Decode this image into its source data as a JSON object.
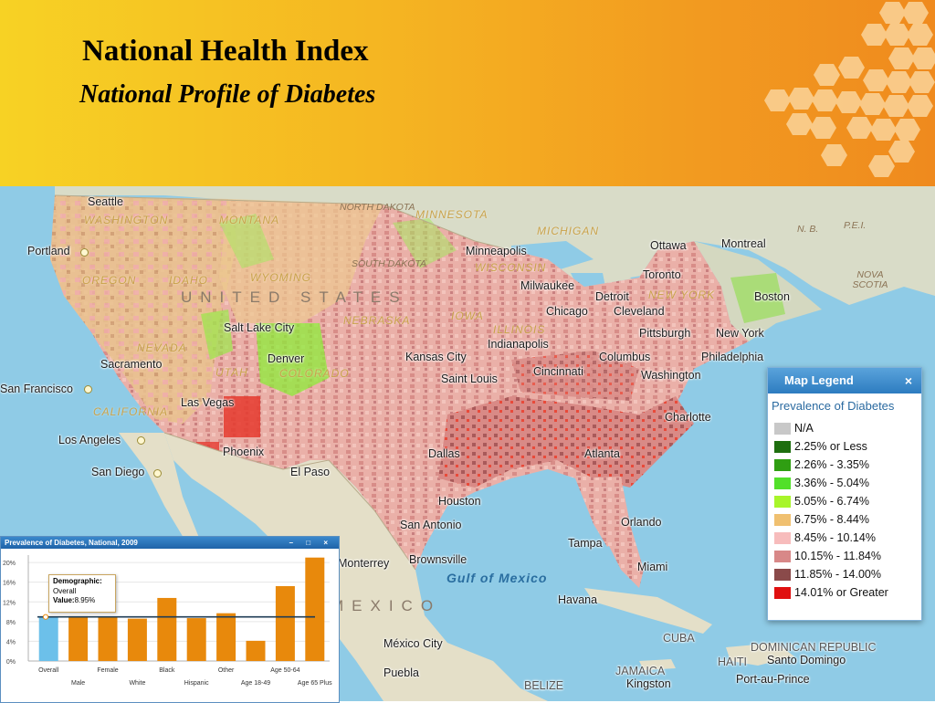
{
  "header": {
    "title": "National Health Index",
    "subtitle": "National Profile of Diabetes"
  },
  "map": {
    "cities": [
      {
        "name": "Seattle"
      },
      {
        "name": "Portland"
      },
      {
        "name": "Salt Lake City"
      },
      {
        "name": "Denver"
      },
      {
        "name": "Sacramento"
      },
      {
        "name": "San Francisco"
      },
      {
        "name": "Las Vegas"
      },
      {
        "name": "Los Angeles"
      },
      {
        "name": "San Diego"
      },
      {
        "name": "Phoenix"
      },
      {
        "name": "El Paso"
      },
      {
        "name": "Dallas"
      },
      {
        "name": "Houston"
      },
      {
        "name": "San Antonio"
      },
      {
        "name": "Brownsville"
      },
      {
        "name": "Monterrey"
      },
      {
        "name": "Minneapolis"
      },
      {
        "name": "Milwaukee"
      },
      {
        "name": "Chicago"
      },
      {
        "name": "Kansas City"
      },
      {
        "name": "Saint Louis"
      },
      {
        "name": "Indianapolis"
      },
      {
        "name": "Cincinnati"
      },
      {
        "name": "Detroit"
      },
      {
        "name": "Cleveland"
      },
      {
        "name": "Pittsburgh"
      },
      {
        "name": "Columbus"
      },
      {
        "name": "Washington"
      },
      {
        "name": "Philadelphia"
      },
      {
        "name": "New York"
      },
      {
        "name": "Boston"
      },
      {
        "name": "Toronto"
      },
      {
        "name": "Ottawa"
      },
      {
        "name": "Montreal"
      },
      {
        "name": "Atlanta"
      },
      {
        "name": "Charlotte"
      },
      {
        "name": "Orlando"
      },
      {
        "name": "Tampa"
      },
      {
        "name": "Miami"
      },
      {
        "name": "Havana"
      },
      {
        "name": "México City"
      },
      {
        "name": "Puebla"
      },
      {
        "name": "Kingston"
      },
      {
        "name": "Port-au-Prince"
      },
      {
        "name": "Santo Domingo"
      }
    ],
    "regions": [
      "WASHINGTON",
      "MONTANA",
      "NORTH DAKOTA",
      "MINNESOTA",
      "OREGON",
      "IDAHO",
      "WYOMING",
      "SOUTH DAKOTA",
      "NEVADA",
      "UTAH",
      "COLORADO",
      "NEBRASKA",
      "IOWA",
      "ILLINOIS",
      "WISCONSIN",
      "CALIFORNIA",
      "NEW YORK",
      "MICHIGAN"
    ],
    "countries": {
      "us": "UNITED STATES",
      "mexico": "MEXICO",
      "cuba": "CUBA",
      "haiti": "HAITI",
      "jamaica": "JAMAICA",
      "belize": "BELIZE",
      "dr": "DOMINICAN REPUBLIC"
    },
    "water": {
      "gulf": "Gulf of Mexico"
    },
    "provinces": {
      "nb": "N. B.",
      "pei": "P.E.I.",
      "ns": "NOVA SCOTIA"
    }
  },
  "legend": {
    "title": "Map Legend",
    "close_label": "×",
    "subtitle": "Prevalence of Diabetes",
    "items": [
      {
        "label": "N/A",
        "color": "#c8c8c8"
      },
      {
        "label": "2.25% or Less",
        "color": "#1e6e0f"
      },
      {
        "label": "2.26% - 3.35%",
        "color": "#2f9e12"
      },
      {
        "label": "3.36% - 5.04%",
        "color": "#52e02a"
      },
      {
        "label": "5.05% - 6.74%",
        "color": "#a8f52a"
      },
      {
        "label": "6.75% - 8.44%",
        "color": "#f0c070"
      },
      {
        "label": "8.45% - 10.14%",
        "color": "#f7bcbc"
      },
      {
        "label": "10.15% - 11.84%",
        "color": "#d88888"
      },
      {
        "label": "11.85% - 14.00%",
        "color": "#8a4a4a"
      },
      {
        "label": "14.01% or Greater",
        "color": "#e01010"
      }
    ]
  },
  "chart_window": {
    "title": "Prevalence of Diabetes, National, 2009",
    "controls": "– □ ×",
    "tooltip": {
      "label1": "Demographic:",
      "value1": "Overall",
      "label2": "Value:",
      "value2": "8.95%"
    }
  },
  "chart_data": {
    "type": "bar",
    "categories": [
      "Overall",
      "Male",
      "Female",
      "White",
      "Black",
      "Hispanic",
      "Other",
      "Age 18-49",
      "Age 50-64",
      "Age 65 Plus"
    ],
    "values": [
      8.95,
      9.1,
      9.0,
      8.6,
      12.8,
      8.7,
      9.7,
      4.1,
      15.2,
      21.0
    ],
    "highlight_index": 0,
    "reference_value": 8.95,
    "y_ticks": [
      "0%",
      "4%",
      "8%",
      "12%",
      "16%",
      "20%"
    ],
    "ylim": [
      0,
      21.5
    ],
    "colors": {
      "bar": "#e8890c",
      "highlight": "#6cc0ea",
      "line": "#1f3c55"
    }
  }
}
